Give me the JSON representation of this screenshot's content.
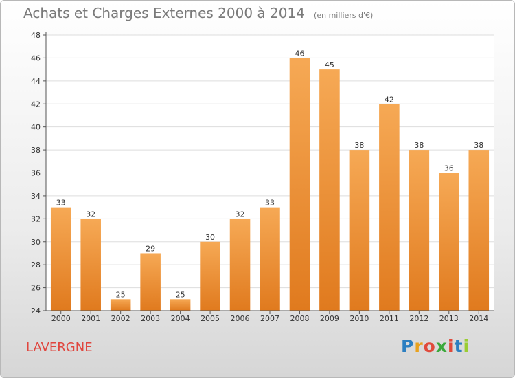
{
  "header": {
    "title": "Achats et Charges Externes 2000 à 2014",
    "unit": "(en milliers d'€)"
  },
  "footer": {
    "commune": "LAVERGNE",
    "logo": {
      "letters": [
        "P",
        "r",
        "o",
        "x",
        "i",
        "t",
        "i"
      ],
      "colors": [
        "#2c7fc1",
        "#e9a21f",
        "#e04a3b",
        "#3aa83a",
        "#e04a3b",
        "#2c7fc1",
        "#9acd32"
      ]
    }
  },
  "colors": {
    "bar_light": "#f6a955",
    "bar_dark": "#e07a1e",
    "axis": "#555555",
    "grid": "#dddddd",
    "text": "#333333"
  },
  "chart_data": {
    "type": "bar",
    "categories": [
      "2000",
      "2001",
      "2002",
      "2003",
      "2004",
      "2005",
      "2006",
      "2007",
      "2008",
      "2009",
      "2010",
      "2011",
      "2012",
      "2013",
      "2014"
    ],
    "values": [
      33,
      32,
      25,
      29,
      25,
      30,
      32,
      33,
      46,
      45,
      38,
      42,
      38,
      36,
      38
    ],
    "ylim": [
      24,
      48
    ],
    "yticks": [
      24,
      26,
      28,
      30,
      32,
      34,
      36,
      38,
      40,
      42,
      44,
      46,
      48
    ],
    "grid": true,
    "data_labels": true
  }
}
